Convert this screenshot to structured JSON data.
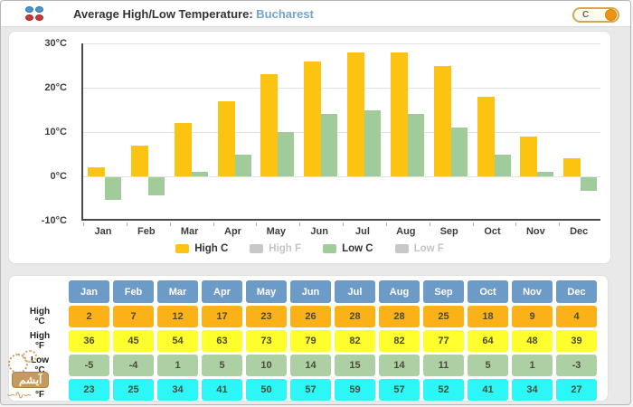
{
  "header": {
    "title": "Average High/Low Temperature:",
    "city": "Bucharest",
    "unit_toggle": {
      "label": "C",
      "state": "on",
      "knob_color": "#f0930f"
    }
  },
  "chart_data": {
    "type": "bar",
    "title": "Average High/Low Temperature: Bucharest",
    "categories": [
      "Jan",
      "Feb",
      "Mar",
      "Apr",
      "May",
      "Jun",
      "Jul",
      "Aug",
      "Sep",
      "Oct",
      "Nov",
      "Dec"
    ],
    "series": [
      {
        "name": "High C",
        "color": "#fcc411",
        "enabled": true,
        "values": [
          2,
          7,
          12,
          17,
          23,
          26,
          28,
          28,
          25,
          18,
          9,
          4
        ]
      },
      {
        "name": "High F",
        "color": "#c8c8c8",
        "enabled": false,
        "values": [
          36,
          45,
          54,
          63,
          73,
          79,
          82,
          82,
          77,
          64,
          48,
          39
        ]
      },
      {
        "name": "Low C",
        "color": "#a2cb9b",
        "enabled": true,
        "values": [
          -5,
          -4,
          1,
          5,
          10,
          14,
          15,
          14,
          11,
          5,
          1,
          -3
        ]
      },
      {
        "name": "Low F",
        "color": "#c8c8c8",
        "enabled": false,
        "values": [
          23,
          25,
          34,
          41,
          50,
          57,
          59,
          57,
          52,
          41,
          34,
          27
        ]
      }
    ],
    "xlabel": "",
    "ylabel": "",
    "ylim": [
      -10,
      30
    ],
    "yticks": [
      "30°C",
      "20°C",
      "10°C",
      "0°C",
      "-10°C"
    ],
    "ytick_values": [
      30,
      20,
      10,
      0,
      -10
    ],
    "grid": true,
    "legend_position": "bottom"
  },
  "table": {
    "header_bg": "#6d9bc8",
    "columns": [
      "Jan",
      "Feb",
      "Mar",
      "Apr",
      "May",
      "Jun",
      "Jul",
      "Aug",
      "Sep",
      "Oct",
      "Nov",
      "Dec"
    ],
    "rows": [
      {
        "label": "High\n°C",
        "bg": "#fbb118",
        "values": [
          "2",
          "7",
          "12",
          "17",
          "23",
          "26",
          "28",
          "28",
          "25",
          "18",
          "9",
          "4"
        ]
      },
      {
        "label": "High\n°F",
        "bg": "#ffff2e",
        "values": [
          "36",
          "45",
          "54",
          "63",
          "73",
          "79",
          "82",
          "82",
          "77",
          "64",
          "48",
          "39"
        ]
      },
      {
        "label": "Low\n°C",
        "bg": "#adcfa4",
        "values": [
          "-5",
          "-4",
          "1",
          "5",
          "10",
          "14",
          "15",
          "14",
          "11",
          "5",
          "1",
          "-3"
        ]
      },
      {
        "label": "Low\n°F",
        "bg": "#2df6f6",
        "values": [
          "23",
          "25",
          "34",
          "41",
          "50",
          "57",
          "59",
          "57",
          "52",
          "41",
          "34",
          "27"
        ]
      }
    ]
  },
  "watermark": {
    "text": "آیشم"
  }
}
